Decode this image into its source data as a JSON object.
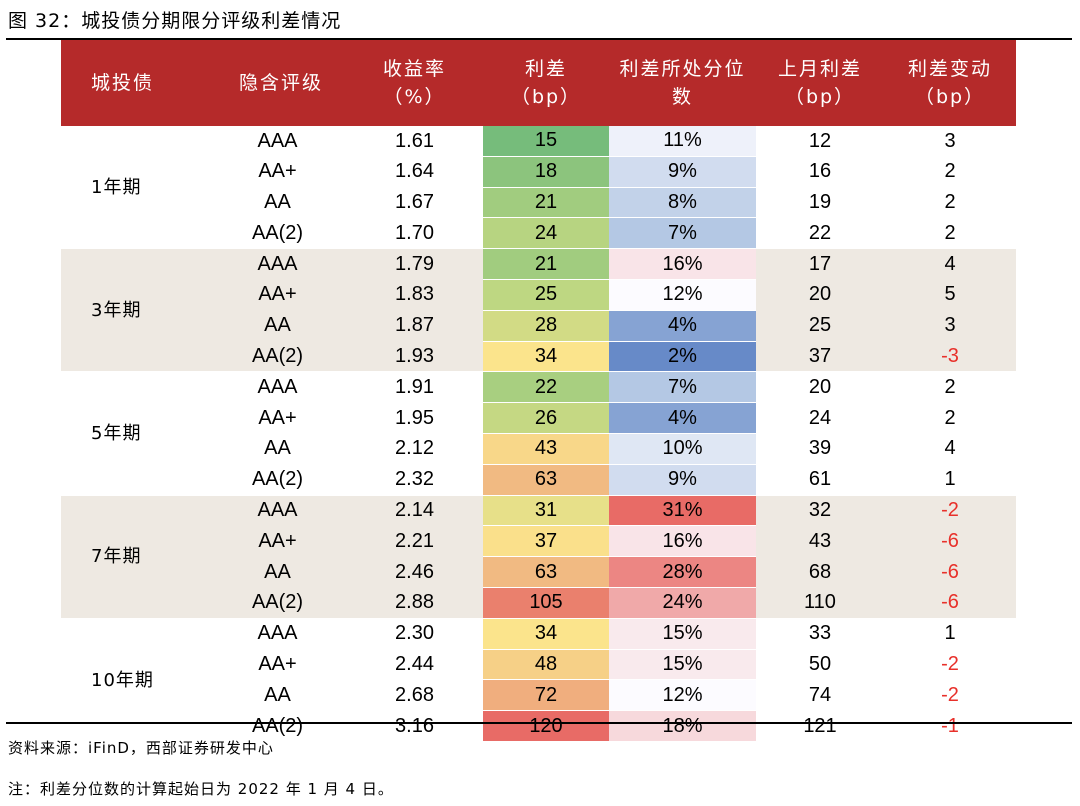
{
  "title": "图 32：城投债分期限分评级利差情况",
  "headers": {
    "term": "城投债",
    "rating": "隐含评级",
    "yield": [
      "收益率",
      "（%）"
    ],
    "spread": [
      "利差",
      "（bp）"
    ],
    "percentile": [
      "利差所处分位",
      "数"
    ],
    "last_month": [
      "上月利差",
      "（bp）"
    ],
    "change": [
      "利差变动",
      "（bp）"
    ]
  },
  "colors": {
    "header_bg": "#b52a2a",
    "band": "#eee9e2",
    "negative": "#e8302a"
  },
  "groups": [
    {
      "term": "1年期",
      "rows": [
        {
          "rating": "AAA",
          "yield": "1.61",
          "spread": 15,
          "pct": 11,
          "last": 12,
          "change": 3
        },
        {
          "rating": "AA+",
          "yield": "1.64",
          "spread": 18,
          "pct": 9,
          "last": 16,
          "change": 2
        },
        {
          "rating": "AA",
          "yield": "1.67",
          "spread": 21,
          "pct": 8,
          "last": 19,
          "change": 2
        },
        {
          "rating": "AA(2)",
          "yield": "1.70",
          "spread": 24,
          "pct": 7,
          "last": 22,
          "change": 2
        }
      ]
    },
    {
      "term": "3年期",
      "rows": [
        {
          "rating": "AAA",
          "yield": "1.79",
          "spread": 21,
          "pct": 16,
          "last": 17,
          "change": 4
        },
        {
          "rating": "AA+",
          "yield": "1.83",
          "spread": 25,
          "pct": 12,
          "last": 20,
          "change": 5
        },
        {
          "rating": "AA",
          "yield": "1.87",
          "spread": 28,
          "pct": 4,
          "last": 25,
          "change": 3
        },
        {
          "rating": "AA(2)",
          "yield": "1.93",
          "spread": 34,
          "pct": 2,
          "last": 37,
          "change": -3
        }
      ]
    },
    {
      "term": "5年期",
      "rows": [
        {
          "rating": "AAA",
          "yield": "1.91",
          "spread": 22,
          "pct": 7,
          "last": 20,
          "change": 2
        },
        {
          "rating": "AA+",
          "yield": "1.95",
          "spread": 26,
          "pct": 4,
          "last": 24,
          "change": 2
        },
        {
          "rating": "AA",
          "yield": "2.12",
          "spread": 43,
          "pct": 10,
          "last": 39,
          "change": 4
        },
        {
          "rating": "AA(2)",
          "yield": "2.32",
          "spread": 63,
          "pct": 9,
          "last": 61,
          "change": 1
        }
      ]
    },
    {
      "term": "7年期",
      "rows": [
        {
          "rating": "AAA",
          "yield": "2.14",
          "spread": 31,
          "pct": 31,
          "last": 32,
          "change": -2
        },
        {
          "rating": "AA+",
          "yield": "2.21",
          "spread": 37,
          "pct": 16,
          "last": 43,
          "change": -6
        },
        {
          "rating": "AA",
          "yield": "2.46",
          "spread": 63,
          "pct": 28,
          "last": 68,
          "change": -6
        },
        {
          "rating": "AA(2)",
          "yield": "2.88",
          "spread": 105,
          "pct": 24,
          "last": 110,
          "change": -6
        }
      ]
    },
    {
      "term": "10年期",
      "rows": [
        {
          "rating": "AAA",
          "yield": "2.30",
          "spread": 34,
          "pct": 15,
          "last": 33,
          "change": 1
        },
        {
          "rating": "AA+",
          "yield": "2.44",
          "spread": 48,
          "pct": 15,
          "last": 50,
          "change": -2
        },
        {
          "rating": "AA",
          "yield": "2.68",
          "spread": 72,
          "pct": 12,
          "last": 74,
          "change": -2
        },
        {
          "rating": "AA(2)",
          "yield": "3.16",
          "spread": 120,
          "pct": 18,
          "last": 121,
          "change": -1
        }
      ]
    }
  ],
  "source": "资料来源：iFinD，西部证券研发中心",
  "footnote": "注：利差分位数的计算起始日为 2022 年 1 月 4 日。"
}
